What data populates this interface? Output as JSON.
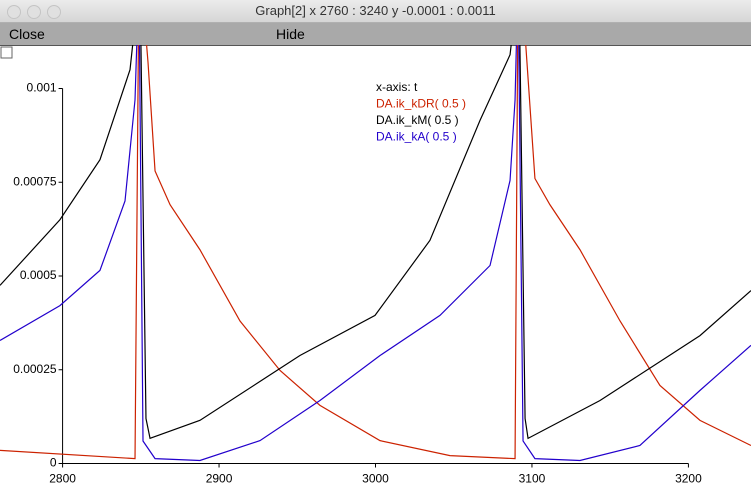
{
  "window": {
    "title": "Graph[2]  x 2760 : 3240  y -0.0001 : 0.0011",
    "menu": [
      "Close",
      "Hide"
    ]
  },
  "chart_data": {
    "type": "line",
    "legend": [
      "x-axis: t"
    ],
    "xlim": [
      2760,
      3240
    ],
    "ylim": [
      -0.0001,
      0.0011
    ],
    "xticks": [
      2800,
      2900,
      3000,
      3100,
      3200
    ],
    "yticks": [
      0,
      0.00025,
      0.0005,
      0.00075,
      0.001
    ],
    "series": [
      {
        "name": "DA.ik_kDR( 0.5 )",
        "color": "#cc2200",
        "x": [
          2760.0,
          2846.3,
          2848.8,
          2850.1,
          2854.6,
          2859.1,
          2868.7,
          2887.8,
          2913.4,
          2939.0,
          2964.5,
          3002.9,
          3047.6,
          3089.2,
          3091.1,
          3093.0,
          3096.8,
          3101.9,
          3111.5,
          3130.7,
          3156.3,
          3181.8,
          3207.4,
          3240.0
        ],
        "values": [
          3.5e-05,
          1.3e-05,
          0.0013,
          0.0013,
          0.00107,
          0.00078,
          0.00069,
          0.00057,
          0.00038,
          0.000248,
          0.000155,
          6.1e-05,
          2.1e-05,
          1.3e-05,
          0.0013,
          0.0013,
          0.00107,
          0.00076,
          0.00069,
          0.00057,
          0.00038,
          0.000208,
          0.000115,
          4.8e-05
        ]
      },
      {
        "name": "DA.ik_kM( 0.5 )",
        "color": "#000000",
        "x": [
          2760.0,
          2798.3,
          2823.9,
          2843.1,
          2849.5,
          2853.3,
          2855.9,
          2887.8,
          2951.7,
          2999.7,
          3034.8,
          3066.8,
          3086.0,
          3091.7,
          3095.6,
          3097.5,
          3143.5,
          3207.4,
          3240.0
        ],
        "values": [
          0.000475,
          0.00065,
          0.00081,
          0.00105,
          0.0013,
          0.00012,
          6.7e-05,
          0.000115,
          0.000288,
          0.000395,
          0.000595,
          0.000915,
          0.00109,
          0.0013,
          0.00012,
          6.7e-05,
          0.000168,
          0.000341,
          0.000461
        ]
      },
      {
        "name": "DA.ik_kA( 0.5 )",
        "color": "#2200cc",
        "x": [
          2760.0,
          2798.3,
          2823.9,
          2839.9,
          2846.3,
          2848.8,
          2851.4,
          2859.1,
          2887.8,
          2926.2,
          2964.5,
          3002.9,
          3041.2,
          3073.2,
          3086.0,
          3089.2,
          3091.1,
          3094.3,
          3101.9,
          3130.7,
          3169.0,
          3207.4,
          3240.0
        ],
        "values": [
          0.000328,
          0.000421,
          0.000515,
          0.0007,
          0.00097,
          0.0013,
          6e-05,
          1.3e-05,
          8e-06,
          6.1e-05,
          0.000168,
          0.000288,
          0.000395,
          0.000528,
          0.000755,
          0.00097,
          0.0013,
          6e-05,
          1.3e-05,
          8e-06,
          4.8e-05,
          0.000195,
          0.000315
        ]
      }
    ]
  }
}
